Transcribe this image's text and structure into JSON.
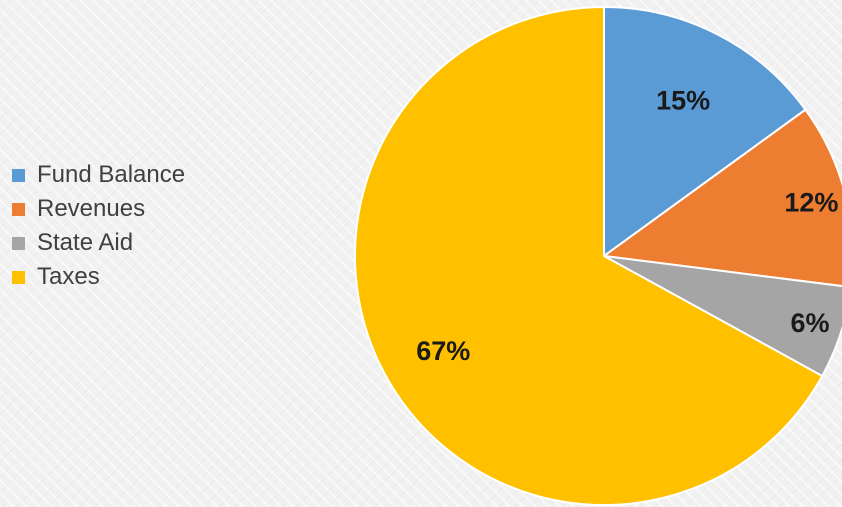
{
  "chart_data": {
    "type": "pie",
    "title": "",
    "legend_position": "left",
    "slices": [
      {
        "label": "Fund Balance",
        "value": 15,
        "display": "15%",
        "color": "#5B9BD5"
      },
      {
        "label": "Revenues",
        "value": 12,
        "display": "12%",
        "color": "#ED7D31"
      },
      {
        "label": "State Aid",
        "value": 6,
        "display": "6%",
        "color": "#A5A5A5"
      },
      {
        "label": "Taxes",
        "value": 67,
        "display": "67%",
        "color": "#FFC000"
      }
    ]
  }
}
